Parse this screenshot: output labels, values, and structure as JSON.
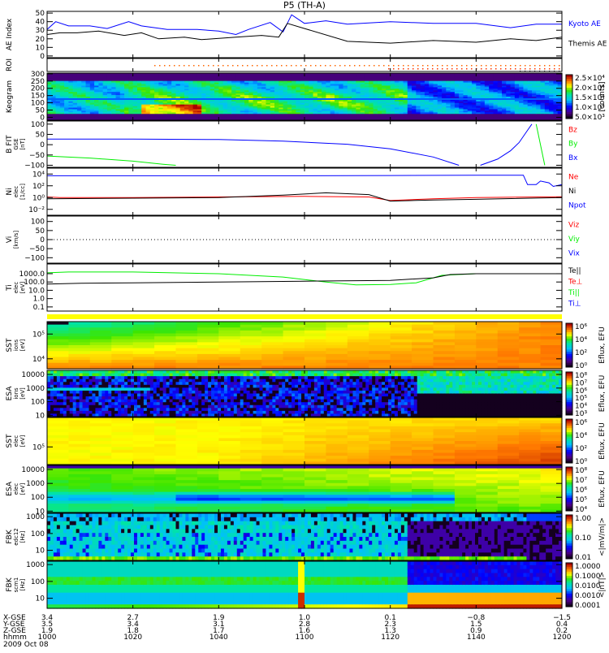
{
  "chart_data": {
    "type": "multi-panel time series / spectrogram summary",
    "title": "P5 (TH-A)",
    "x_range_hhmm": [
      "1000",
      "1200"
    ],
    "date": "2009 Oct 08",
    "colors": {
      "blue": "#0000ff",
      "black": "#000000",
      "red": "#ff0000",
      "green": "#00ee00",
      "orange": "#ff6600",
      "yellow": "#ffff00"
    },
    "panels": [
      {
        "id": "ae",
        "ylabel": [
          "AE Index"
        ],
        "scale": "linear",
        "ylim": [
          -2,
          52
        ],
        "ticks": [
          [
            0,
            "0"
          ],
          [
            10,
            "10"
          ],
          [
            20,
            "20"
          ],
          [
            30,
            "30"
          ],
          [
            40,
            "40"
          ],
          [
            50,
            "50"
          ]
        ],
        "legend": [
          {
            "label": "Kyoto AE",
            "color": "#0000ff"
          },
          {
            "label": "Themis AE",
            "color": "#000000"
          }
        ],
        "series": [
          {
            "name": "Kyoto AE",
            "color": "#0000ff",
            "points": [
              [
                0,
                31
              ],
              [
                2,
                40
              ],
              [
                5,
                35
              ],
              [
                10,
                35
              ],
              [
                14,
                32
              ],
              [
                19,
                40
              ],
              [
                22,
                35
              ],
              [
                28,
                31
              ],
              [
                35,
                31
              ],
              [
                40,
                29
              ],
              [
                44,
                25
              ],
              [
                47,
                31
              ],
              [
                52,
                39
              ],
              [
                55,
                28
              ],
              [
                57,
                48
              ],
              [
                60,
                38
              ],
              [
                65,
                41
              ],
              [
                70,
                37
              ],
              [
                80,
                40
              ],
              [
                90,
                38
              ],
              [
                100,
                38
              ],
              [
                108,
                33
              ],
              [
                114,
                37
              ],
              [
                120,
                37
              ]
            ]
          },
          {
            "name": "Themis AE",
            "color": "#000000",
            "points": [
              [
                0,
                25
              ],
              [
                3,
                27
              ],
              [
                7,
                27
              ],
              [
                12,
                29
              ],
              [
                18,
                24
              ],
              [
                22,
                27
              ],
              [
                26,
                20
              ],
              [
                32,
                22
              ],
              [
                36,
                19
              ],
              [
                44,
                22
              ],
              [
                50,
                24
              ],
              [
                54,
                22
              ],
              [
                56,
                38
              ],
              [
                60,
                32
              ],
              [
                70,
                17
              ],
              [
                80,
                15
              ],
              [
                90,
                18
              ],
              [
                100,
                16
              ],
              [
                108,
                20
              ],
              [
                114,
                18
              ],
              [
                120,
                22
              ]
            ]
          }
        ]
      },
      {
        "id": "roi",
        "ylabel": [
          "ROI"
        ],
        "scale": "none",
        "ticks": [],
        "legend": []
      },
      {
        "id": "keogram",
        "ylabel": [
          "Keogram"
        ],
        "scale": "linear",
        "ylim": [
          -20,
          305
        ],
        "ticks": [
          [
            0,
            "0"
          ],
          [
            50,
            "50"
          ],
          [
            100,
            "100"
          ],
          [
            150,
            "150"
          ],
          [
            200,
            "200"
          ],
          [
            250,
            "250"
          ],
          [
            300,
            "300"
          ]
        ],
        "legend": [],
        "colorbar": {
          "labels": [
            "2.5×10⁴",
            "2.0×10⁴",
            "1.5×10⁴",
            "1.0×10⁴",
            "5.0×10³"
          ],
          "title": "[counts]"
        }
      },
      {
        "id": "bfit",
        "ylabel": [
          "B FIT",
          "GSE",
          "[nT]"
        ],
        "scale": "linear",
        "ylim": [
          -110,
          115
        ],
        "ticks": [
          [
            -100,
            "−100"
          ],
          [
            -50,
            "−50"
          ],
          [
            0,
            "0"
          ],
          [
            50,
            "50"
          ],
          [
            100,
            "100"
          ]
        ],
        "legend": [
          {
            "label": "Bz",
            "color": "#ff0000"
          },
          {
            "label": "By",
            "color": "#00ee00"
          },
          {
            "label": "Bx",
            "color": "#0000ff"
          }
        ],
        "series": [
          {
            "name": "Bx",
            "color": "#0000ff",
            "points": [
              [
                0,
                27
              ],
              [
                20,
                27
              ],
              [
                40,
                25
              ],
              [
                55,
                17
              ],
              [
                70,
                2
              ],
              [
                80,
                -20
              ],
              [
                90,
                -60
              ],
              [
                96,
                -100
              ]
            ],
            "points2": [
              [
                101,
                -100
              ],
              [
                105,
                -70
              ],
              [
                108,
                -30
              ],
              [
                110,
                10
              ],
              [
                112,
                70
              ],
              [
                113,
                100
              ]
            ]
          },
          {
            "name": "By",
            "color": "#00ee00",
            "points": [
              [
                0,
                -55
              ],
              [
                10,
                -65
              ],
              [
                20,
                -80
              ],
              [
                27,
                -95
              ],
              [
                30,
                -100
              ]
            ],
            "points2": [
              [
                114,
                100
              ],
              [
                116,
                -100
              ]
            ]
          }
        ]
      },
      {
        "id": "ni",
        "ylabel": [
          "Ni",
          "elec",
          "[1/cc]"
        ],
        "scale": "log",
        "ylim": [
          -3,
          5
        ],
        "ticks": [
          [
            4,
            "10⁴"
          ],
          [
            2,
            "10²"
          ],
          [
            0,
            "10⁰"
          ],
          [
            -2,
            "10⁻²"
          ]
        ],
        "legend": [
          {
            "label": "Ne",
            "color": "#ff0000"
          },
          {
            "label": "Ni",
            "color": "#000000"
          },
          {
            "label": "Npot",
            "color": "#0000ff"
          }
        ],
        "series": [
          {
            "name": "Npot",
            "color": "#0000ff",
            "points": [
              [
                0,
                3.7
              ],
              [
                20,
                3.7
              ],
              [
                40,
                3.7
              ],
              [
                60,
                3.7
              ],
              [
                80,
                3.75
              ],
              [
                100,
                3.8
              ],
              [
                111,
                3.8
              ],
              [
                112,
                2.2
              ],
              [
                114,
                2.2
              ],
              [
                115,
                2.8
              ],
              [
                117,
                2.5
              ],
              [
                118,
                1.9
              ],
              [
                120,
                2.2
              ]
            ]
          },
          {
            "name": "Ne",
            "color": "#ff0000",
            "points": [
              [
                0,
                0.1
              ],
              [
                3,
                0.0
              ],
              [
                20,
                0.0
              ],
              [
                40,
                0.1
              ],
              [
                60,
                0.2
              ],
              [
                75,
                0.1
              ],
              [
                80,
                -0.5
              ],
              [
                90,
                -0.2
              ],
              [
                100,
                0.0
              ],
              [
                120,
                0.15
              ]
            ]
          },
          {
            "name": "Ni",
            "color": "#000000",
            "points": [
              [
                0,
                -0.2
              ],
              [
                20,
                -0.1
              ],
              [
                40,
                0.0
              ],
              [
                55,
                0.4
              ],
              [
                65,
                0.8
              ],
              [
                75,
                0.5
              ],
              [
                80,
                -0.6
              ],
              [
                90,
                -0.4
              ],
              [
                100,
                -0.3
              ],
              [
                120,
                0.0
              ]
            ]
          }
        ]
      },
      {
        "id": "vi",
        "ylabel": [
          "Vi",
          "[km/s]"
        ],
        "scale": "linear",
        "ylim": [
          -130,
          130
        ],
        "ticks": [
          [
            -100,
            "−100"
          ],
          [
            -50,
            "−50"
          ],
          [
            0,
            "0"
          ],
          [
            50,
            "50"
          ],
          [
            100,
            "100"
          ]
        ],
        "legend": [
          {
            "label": "Viz",
            "color": "#ff0000"
          },
          {
            "label": "Viy",
            "color": "#00ee00"
          },
          {
            "label": "Vix",
            "color": "#0000ff"
          }
        ]
      },
      {
        "id": "ti",
        "ylabel": [
          "Ti",
          "elec",
          "[eV]"
        ],
        "scale": "log",
        "ylim": [
          -1.5,
          4.17
        ],
        "ticks": [
          [
            3,
            "1000.0"
          ],
          [
            2,
            "100.0"
          ],
          [
            1,
            "10.0"
          ],
          [
            0,
            "1.0"
          ],
          [
            -1,
            "0.1"
          ]
        ],
        "legend": [
          {
            "label": "Te||",
            "color": "#000000"
          },
          {
            "label": "Te⊥",
            "color": "#ff0000"
          },
          {
            "label": "Ti||",
            "color": "#00ee00"
          },
          {
            "label": "Ti⊥",
            "color": "#0000ff"
          }
        ],
        "series": [
          {
            "name": "Ti||",
            "color": "#00ee00",
            "points": [
              [
                0,
                3.1
              ],
              [
                5,
                3.2
              ],
              [
                20,
                3.2
              ],
              [
                40,
                3.0
              ],
              [
                55,
                2.6
              ],
              [
                65,
                2.0
              ],
              [
                72,
                1.65
              ],
              [
                80,
                1.7
              ],
              [
                86,
                1.9
              ],
              [
                92,
                2.8
              ],
              [
                100,
                3.0
              ],
              [
                120,
                3.0
              ]
            ]
          },
          {
            "name": "Te||",
            "color": "#000000",
            "points": [
              [
                0,
                1.75
              ],
              [
                8,
                1.85
              ],
              [
                20,
                1.9
              ],
              [
                40,
                2.0
              ],
              [
                60,
                2.1
              ],
              [
                80,
                2.2
              ],
              [
                90,
                2.5
              ],
              [
                94,
                2.9
              ],
              [
                100,
                3.0
              ],
              [
                120,
                3.0
              ]
            ]
          }
        ]
      },
      {
        "id": "sst_ion",
        "ylabel": [
          "SST",
          "ions",
          "[eV]"
        ],
        "scale": "log",
        "ylim": [
          3.6,
          5.5
        ],
        "ticks": [
          [
            5,
            "10⁵"
          ],
          [
            4,
            "10⁴"
          ]
        ],
        "legend": [],
        "colorbar": {
          "labels": [
            "10⁶",
            "10⁴",
            "10²",
            "10⁰"
          ],
          "title": "Eflux, EFU"
        }
      },
      {
        "id": "esa_ion",
        "ylabel": [
          "ESA",
          "ions",
          "[eV]"
        ],
        "scale": "log",
        "ylim": [
          0.9,
          4.3
        ],
        "ticks": [
          [
            4,
            "10000"
          ],
          [
            3,
            "1000"
          ],
          [
            2,
            "100"
          ],
          [
            1,
            "10"
          ]
        ],
        "legend": [],
        "colorbar": {
          "labels": [
            "10⁸",
            "10⁷",
            "10⁶",
            "10⁵",
            "10⁴",
            "10³"
          ],
          "title": "Eflux, EFU"
        }
      },
      {
        "id": "sst_elec",
        "ylabel": [
          "SST",
          "elec",
          "[eV]"
        ],
        "scale": "log",
        "ylim": [
          4.4,
          6.0
        ],
        "ticks": [
          [
            5,
            "10⁵"
          ]
        ],
        "legend": [],
        "colorbar": {
          "labels": [
            "10⁶",
            "10⁴",
            "10²",
            "10⁰"
          ],
          "title": "Eflux, EFU"
        }
      },
      {
        "id": "esa_elec",
        "ylabel": [
          "ESA",
          "elec",
          "[eV]"
        ],
        "scale": "log",
        "ylim": [
          0.9,
          4.3
        ],
        "ticks": [
          [
            4,
            "10000"
          ],
          [
            3,
            "1000"
          ],
          [
            2,
            "100"
          ],
          [
            1,
            "10"
          ]
        ],
        "legend": [],
        "colorbar": {
          "labels": [
            "10⁸",
            "10⁷",
            "10⁶",
            "10⁵",
            "10⁴"
          ],
          "title": "Eflux, EFU"
        }
      },
      {
        "id": "fbk_edc12",
        "ylabel": [
          "FBK",
          "edc12",
          "[Hz]"
        ],
        "scale": "log",
        "ylim": [
          0.4,
          3.2
        ],
        "ticks": [
          [
            3,
            "1000"
          ],
          [
            2,
            "100"
          ],
          [
            1,
            "10"
          ]
        ],
        "legend": [],
        "colorbar": {
          "labels": [
            "1.00",
            "0.10",
            "0.01"
          ],
          "title": "<|mV/m|>"
        }
      },
      {
        "id": "fbk_scm1",
        "ylabel": [
          "FBK",
          "scm1",
          "[Hz]"
        ],
        "scale": "log",
        "ylim": [
          0.4,
          3.2
        ],
        "ticks": [
          [
            3,
            "1000"
          ],
          [
            2,
            "100"
          ],
          [
            1,
            "10"
          ]
        ],
        "legend": [],
        "colorbar": {
          "labels": [
            "1.0000",
            "0.1000",
            "0.0100",
            "0.0010",
            "0.0001"
          ],
          "title": "<|nT|>"
        }
      }
    ],
    "x_axis_table": {
      "row_labels": [
        "X-GSE",
        "Y-GSE",
        "Z-GSE",
        "hhmm"
      ],
      "columns": [
        [
          "3.4",
          "3.5",
          "1.9",
          "1000"
        ],
        [
          "2.7",
          "3.4",
          "1.8",
          "1020"
        ],
        [
          "1.9",
          "3.1",
          "1.7",
          "1040"
        ],
        [
          "1.0",
          "2.8",
          "1.6",
          "1100"
        ],
        [
          "0.1",
          "2.3",
          "1.3",
          "1120"
        ],
        [
          "−0.8",
          "1.5",
          "0.9",
          "1140"
        ],
        [
          "−1.5",
          "0.4",
          "0.2",
          "1200"
        ]
      ]
    }
  }
}
